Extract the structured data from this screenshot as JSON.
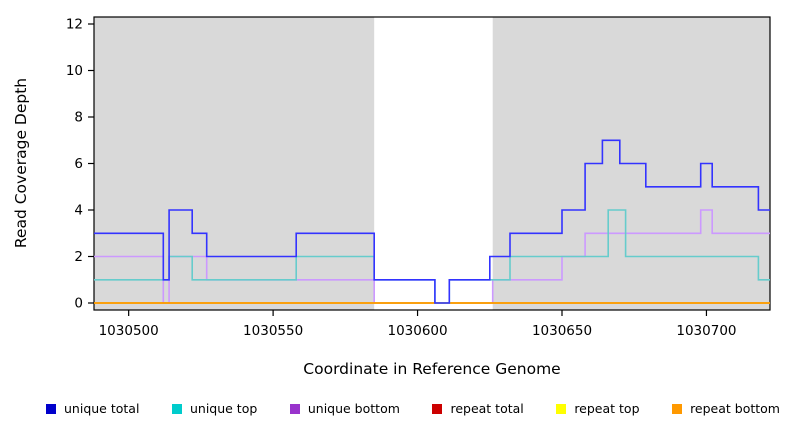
{
  "chart_data": {
    "type": "line",
    "subtype": "step",
    "title": "",
    "xlabel": "Coordinate in Reference Genome",
    "ylabel": "Read Coverage Depth",
    "xlim": [
      1030488,
      1030722
    ],
    "ylim": [
      0,
      12
    ],
    "x_ticks": [
      1030500,
      1030550,
      1030600,
      1030650,
      1030700
    ],
    "y_ticks": [
      0,
      2,
      4,
      6,
      8,
      10,
      12
    ],
    "grid": "off",
    "background": {
      "plot_bg": "#ffffff",
      "shaded_regions": [
        {
          "from": 1030488,
          "to": 1030585,
          "color": "#d9d9d9"
        },
        {
          "from": 1030626,
          "to": 1030722,
          "color": "#d9d9d9"
        }
      ]
    },
    "series": [
      {
        "name": "unique bottom",
        "color": "#cc99ff",
        "steps": [
          [
            1030488,
            2
          ],
          [
            1030512,
            0
          ],
          [
            1030514,
            2
          ],
          [
            1030527,
            1
          ],
          [
            1030585,
            0
          ],
          [
            1030626,
            1
          ],
          [
            1030650,
            2
          ],
          [
            1030658,
            3
          ],
          [
            1030698,
            4
          ],
          [
            1030702,
            3
          ]
        ]
      },
      {
        "name": "repeat total",
        "color": "#cc0000",
        "steps": [
          [
            1030488,
            0
          ]
        ]
      },
      {
        "name": "repeat top",
        "color": "#ffff00",
        "steps": [
          [
            1030488,
            0
          ]
        ]
      },
      {
        "name": "repeat bottom",
        "color": "#ff9900",
        "steps": [
          [
            1030488,
            0
          ]
        ]
      },
      {
        "name": "unique top",
        "color": "#66cccc",
        "steps": [
          [
            1030488,
            1
          ],
          [
            1030514,
            2
          ],
          [
            1030522,
            1
          ],
          [
            1030558,
            2
          ],
          [
            1030585,
            1
          ],
          [
            1030606,
            0
          ],
          [
            1030611,
            1
          ],
          [
            1030632,
            2
          ],
          [
            1030666,
            4
          ],
          [
            1030672,
            2
          ],
          [
            1030718,
            1
          ]
        ]
      },
      {
        "name": "unique total",
        "color": "#3333ff",
        "steps": [
          [
            1030488,
            3
          ],
          [
            1030512,
            1
          ],
          [
            1030514,
            4
          ],
          [
            1030522,
            3
          ],
          [
            1030527,
            2
          ],
          [
            1030558,
            3
          ],
          [
            1030585,
            1
          ],
          [
            1030606,
            0
          ],
          [
            1030611,
            1
          ],
          [
            1030625,
            2
          ],
          [
            1030632,
            3
          ],
          [
            1030650,
            4
          ],
          [
            1030658,
            6
          ],
          [
            1030664,
            7
          ],
          [
            1030670,
            6
          ],
          [
            1030679,
            5
          ],
          [
            1030698,
            6
          ],
          [
            1030702,
            5
          ],
          [
            1030718,
            4
          ]
        ]
      }
    ],
    "legend": {
      "position": "bottom",
      "entries": [
        {
          "label": "unique total",
          "color": "#0000cc"
        },
        {
          "label": "unique top",
          "color": "#00cccc"
        },
        {
          "label": "unique bottom",
          "color": "#9933cc"
        },
        {
          "label": "repeat total",
          "color": "#cc0000"
        },
        {
          "label": "repeat top",
          "color": "#ffff00"
        },
        {
          "label": "repeat bottom",
          "color": "#ff9900"
        }
      ]
    }
  }
}
